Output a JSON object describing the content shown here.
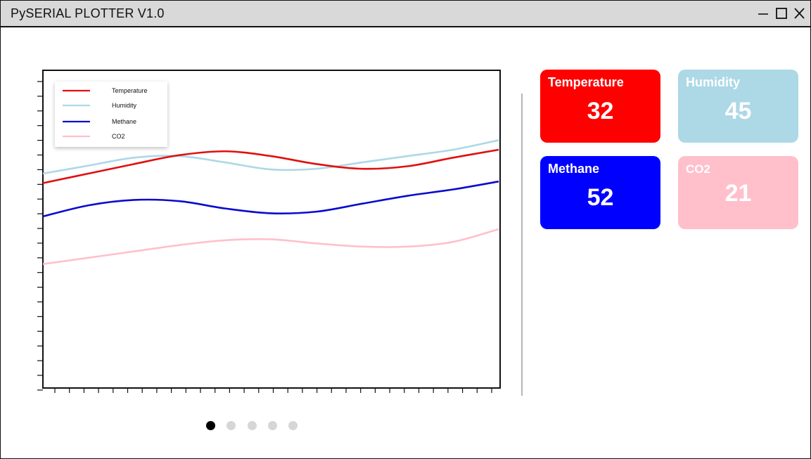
{
  "window": {
    "title": "PySERIAL PLOTTER V1.0",
    "controls": [
      "minimize-icon",
      "maximize-icon",
      "close-icon"
    ]
  },
  "chart_data": {
    "type": "line",
    "title": "",
    "xlabel": "",
    "ylabel": "",
    "ylim": [
      0,
      100
    ],
    "x": [
      0,
      10,
      20,
      30,
      40,
      50,
      60,
      70,
      80,
      90,
      100
    ],
    "grid": false,
    "legend_position": "top-left",
    "series": [
      {
        "name": "Temperature",
        "color": "#e10f0f",
        "values": [
          64.5,
          67.5,
          70.5,
          73.3,
          74.5,
          73.0,
          70.5,
          69.0,
          69.8,
          72.5,
          75.0
        ]
      },
      {
        "name": "Humidity",
        "color": "#add8e6",
        "values": [
          67.5,
          70.0,
          72.5,
          73.0,
          71.0,
          68.8,
          69.0,
          71.0,
          73.0,
          75.0,
          78.0
        ]
      },
      {
        "name": "Methane",
        "color": "#0a0acf",
        "values": [
          54.0,
          57.5,
          59.2,
          58.8,
          56.5,
          55.0,
          55.5,
          58.0,
          60.5,
          62.5,
          65.0
        ]
      },
      {
        "name": "CO2",
        "color": "#ffc0cb",
        "values": [
          39.0,
          41.0,
          43.0,
          45.0,
          46.5,
          46.8,
          45.5,
          44.5,
          44.5,
          46.0,
          50.0
        ]
      }
    ]
  },
  "cards": [
    {
      "id": "temperature",
      "label": "Temperature",
      "value": "32",
      "color": "#ff0000"
    },
    {
      "id": "humidity",
      "label": "Humidity",
      "value": "45",
      "color": "#add8e6"
    },
    {
      "id": "methane",
      "label": "Methane",
      "value": "52",
      "color": "#0000ff"
    },
    {
      "id": "co2",
      "label": "CO2",
      "value": "21",
      "color": "#ffc0cb"
    }
  ],
  "pagination": {
    "count": 5,
    "active": 0
  }
}
